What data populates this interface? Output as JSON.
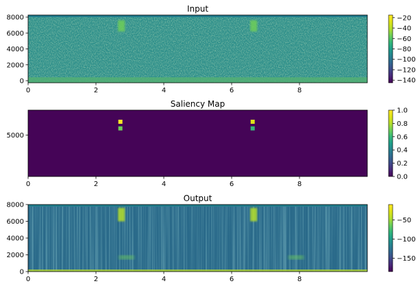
{
  "chart_data": [
    {
      "type": "heatmap",
      "title": "Input",
      "xlim": [
        0,
        10
      ],
      "ylim": [
        0,
        8000
      ],
      "x_ticks": [
        "0",
        "2",
        "4",
        "6",
        "8"
      ],
      "x_tick_values": [
        0,
        2,
        4,
        6,
        8
      ],
      "y_ticks": [
        "0",
        "2000",
        "4000",
        "6000",
        "8000"
      ],
      "y_tick_values": [
        0,
        2000,
        4000,
        6000,
        8000
      ],
      "colorbar": {
        "range": [
          -145,
          -15
        ],
        "ticks": [
          "−20",
          "−40",
          "−60",
          "−80",
          "−100",
          "−120",
          "−140"
        ],
        "tick_values": [
          -20,
          -40,
          -60,
          -80,
          -100,
          -120,
          -140
        ]
      },
      "features": [
        {
          "x": 2.75,
          "y_from": 6200,
          "y_to": 7600,
          "level": 0.72
        },
        {
          "x": 6.65,
          "y_from": 6200,
          "y_to": 7600,
          "level": 0.72
        }
      ]
    },
    {
      "type": "heatmap",
      "title": "Saliency Map",
      "xlim": [
        0,
        10
      ],
      "ylim": [
        0,
        8000
      ],
      "x_ticks": [
        "0",
        "2",
        "4",
        "6",
        "8"
      ],
      "x_tick_values": [
        0,
        2,
        4,
        6,
        8
      ],
      "y_ticks": [
        "5000"
      ],
      "y_tick_values": [
        5000
      ],
      "colorbar": {
        "range": [
          0,
          1
        ],
        "ticks": [
          "0.0",
          "0.2",
          "0.4",
          "0.6",
          "0.8",
          "1.0"
        ],
        "tick_values": [
          0,
          0.2,
          0.4,
          0.6,
          0.8,
          1.0
        ]
      },
      "features": [
        {
          "x": 2.72,
          "y": 6600,
          "level": 1.0
        },
        {
          "x": 2.72,
          "y": 5800,
          "level": 0.7
        },
        {
          "x": 6.62,
          "y": 6600,
          "level": 0.85
        },
        {
          "x": 6.62,
          "y": 5800,
          "level": 0.6
        }
      ]
    },
    {
      "type": "heatmap",
      "title": "Output",
      "xlim": [
        0,
        10
      ],
      "ylim": [
        0,
        8000
      ],
      "x_ticks": [
        "0",
        "2",
        "4",
        "6",
        "8"
      ],
      "x_tick_values": [
        0,
        2,
        4,
        6,
        8
      ],
      "y_ticks": [
        "0",
        "2000",
        "4000",
        "6000",
        "8000"
      ],
      "y_tick_values": [
        0,
        2000,
        4000,
        6000,
        8000
      ],
      "colorbar": {
        "range": [
          -185,
          -10
        ],
        "ticks": [
          "−50",
          "−100",
          "−150"
        ],
        "tick_values": [
          -50,
          -100,
          -150
        ]
      },
      "features": [
        {
          "x": 2.75,
          "y_from": 6000,
          "y_to": 7600,
          "level": 0.8
        },
        {
          "x": 6.65,
          "y_from": 6000,
          "y_to": 7600,
          "level": 0.8
        },
        {
          "x": 2.9,
          "y": 1700,
          "level": 0.7
        },
        {
          "x": 7.9,
          "y": 1700,
          "level": 0.65
        }
      ]
    }
  ]
}
